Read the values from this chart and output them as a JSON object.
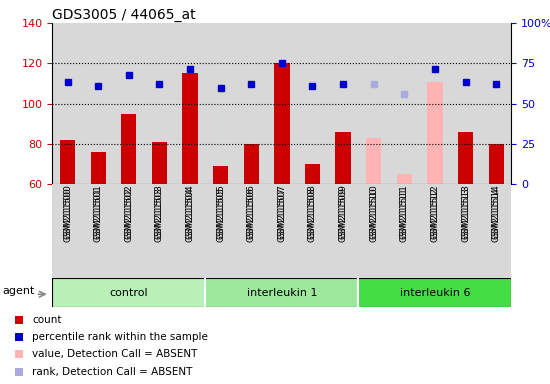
{
  "title": "GDS3005 / 44065_at",
  "samples": [
    "GSM211500",
    "GSM211501",
    "GSM211502",
    "GSM211503",
    "GSM211504",
    "GSM211505",
    "GSM211506",
    "GSM211507",
    "GSM211508",
    "GSM211509",
    "GSM211510",
    "GSM211511",
    "GSM211512",
    "GSM211513",
    "GSM211514"
  ],
  "bar_values": [
    82,
    76,
    95,
    81,
    115,
    69,
    80,
    120,
    70,
    86,
    83,
    65,
    111,
    86,
    80
  ],
  "bar_colors": [
    "#cc0000",
    "#cc0000",
    "#cc0000",
    "#cc0000",
    "#cc0000",
    "#cc0000",
    "#cc0000",
    "#cc0000",
    "#cc0000",
    "#cc0000",
    "#ffb3b3",
    "#ffb3b3",
    "#ffb3b3",
    "#cc0000",
    "#cc0000"
  ],
  "rank_values": [
    111,
    109,
    114,
    110,
    117,
    108,
    110,
    120,
    109,
    110,
    110,
    105,
    117,
    111,
    110
  ],
  "rank_colors": [
    "#0000cc",
    "#0000cc",
    "#0000cc",
    "#0000cc",
    "#0000cc",
    "#0000cc",
    "#0000cc",
    "#0000cc",
    "#0000cc",
    "#0000cc",
    "#aaaadd",
    "#aaaadd",
    "#0000cc",
    "#0000cc",
    "#0000cc"
  ],
  "ylim_left": [
    60,
    140
  ],
  "ylim_right": [
    0,
    100
  ],
  "yticks_left": [
    60,
    80,
    100,
    120,
    140
  ],
  "yticks_right": [
    0,
    25,
    50,
    75,
    100
  ],
  "ytick_right_labels": [
    "0",
    "25",
    "50",
    "75",
    "100%"
  ],
  "groups": [
    {
      "label": "control",
      "start": 0,
      "end": 4,
      "color": "#b8f0b8"
    },
    {
      "label": "interleukin 1",
      "start": 5,
      "end": 9,
      "color": "#9de89d"
    },
    {
      "label": "interleukin 6",
      "start": 10,
      "end": 14,
      "color": "#44dd44"
    }
  ],
  "agent_label": "agent",
  "col_bg_color": "#d8d8d8",
  "plot_bg_color": "#ffffff",
  "left_tick_color": "#cc0000",
  "right_tick_color": "#0000cc",
  "legend_items": [
    {
      "color": "#cc0000",
      "label": "count"
    },
    {
      "color": "#0000cc",
      "label": "percentile rank within the sample"
    },
    {
      "color": "#ffb3b3",
      "label": "value, Detection Call = ABSENT"
    },
    {
      "color": "#aaaadd",
      "label": "rank, Detection Call = ABSENT"
    }
  ]
}
